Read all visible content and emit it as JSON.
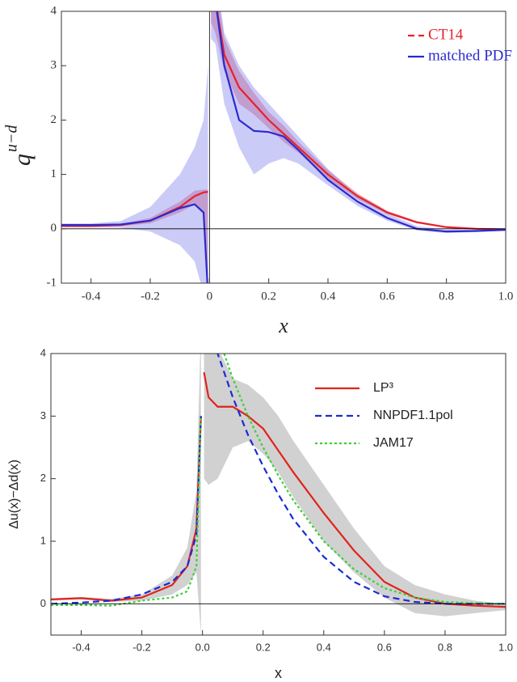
{
  "chart_data": [
    {
      "type": "line",
      "x_label": "x",
      "y_label": "q",
      "y_label_superscript": "u−d",
      "font": "serif",
      "xlim": [
        -0.5,
        1.0
      ],
      "ylim": [
        -1,
        4
      ],
      "xticks": [
        -0.4,
        -0.2,
        0,
        0.2,
        0.4,
        0.6,
        0.8,
        {
          "value": 1,
          "label": "1.0"
        }
      ],
      "yticks": [
        -1,
        0,
        1,
        2,
        3,
        4
      ],
      "zero_line": true,
      "x_zero_line": true,
      "legend": "top-right",
      "x": [
        -0.5,
        -0.4,
        -0.3,
        -0.2,
        -0.1,
        -0.05,
        -0.02,
        -0.005,
        0,
        0.005,
        0.02,
        0.05,
        0.1,
        0.15,
        0.2,
        0.25,
        0.3,
        0.4,
        0.5,
        0.6,
        0.7,
        0.8,
        0.9,
        1.0
      ],
      "series": [
        {
          "name": "CT14",
          "color": "#e8202a",
          "style": "solid",
          "legend_style": "dashed",
          "band_color": "#d9475a",
          "values": [
            0.05,
            0.05,
            0.07,
            0.15,
            0.4,
            0.6,
            0.67,
            0.68,
            null,
            4.5,
            4.2,
            3.2,
            2.6,
            2.3,
            2.0,
            1.75,
            1.5,
            1.0,
            0.6,
            0.3,
            0.12,
            0.03,
            0,
            -0.01
          ],
          "lower": [
            0.04,
            0.04,
            0.05,
            0.1,
            0.3,
            0.45,
            0.3,
            -1.2,
            null,
            3.8,
            3.6,
            2.9,
            2.3,
            2.1,
            1.85,
            1.6,
            1.4,
            0.92,
            0.55,
            0.27,
            0.1,
            0.02,
            -0.01,
            -0.02
          ],
          "upper": [
            0.06,
            0.06,
            0.09,
            0.2,
            0.5,
            0.7,
            0.72,
            0.72,
            null,
            5,
            4.6,
            3.5,
            2.9,
            2.5,
            2.15,
            1.9,
            1.6,
            1.08,
            0.65,
            0.33,
            0.14,
            0.04,
            0.01,
            0
          ]
        },
        {
          "name": "matched PDF",
          "color": "#2a2ad0",
          "style": "solid",
          "legend_style": "solid",
          "band_color": "#8c8cf0",
          "values": [
            0.07,
            0.07,
            0.08,
            0.15,
            0.38,
            0.45,
            0.3,
            -1.2,
            null,
            4.5,
            4.2,
            3.0,
            2.0,
            1.8,
            1.78,
            1.7,
            1.45,
            0.9,
            0.5,
            0.2,
            0,
            -0.05,
            -0.04,
            -0.02
          ],
          "lower": [
            0.03,
            0.03,
            0.02,
            -0.05,
            -0.3,
            -0.6,
            -1.2,
            -1.5,
            null,
            3.5,
            3.4,
            2.3,
            1.5,
            1.0,
            1.2,
            1.3,
            1.2,
            0.8,
            0.42,
            0.15,
            -0.03,
            -0.08,
            -0.06,
            -0.03
          ],
          "upper": [
            0.1,
            0.1,
            0.14,
            0.4,
            1.0,
            1.5,
            2.0,
            3.0,
            null,
            5,
            4.8,
            3.6,
            3.0,
            2.6,
            2.3,
            2.0,
            1.7,
            1.1,
            0.6,
            0.28,
            0.05,
            -0.02,
            -0.02,
            -0.01
          ]
        }
      ]
    },
    {
      "type": "line",
      "x_label": "x",
      "y_label": "Δu(x)−Δd(x)",
      "font": "sans-serif",
      "xlim": [
        -0.5,
        1.0
      ],
      "ylim": [
        -0.5,
        4
      ],
      "xticks": [
        -0.4,
        -0.2,
        {
          "value": 0,
          "label": "0.0"
        },
        0.2,
        0.4,
        0.6,
        0.8,
        {
          "value": 1,
          "label": "1.0"
        }
      ],
      "yticks": [
        0,
        1,
        2,
        3,
        4
      ],
      "zero_line": true,
      "x_zero_line": false,
      "legend": "top-right",
      "x": [
        -0.5,
        -0.4,
        -0.3,
        -0.2,
        -0.1,
        -0.05,
        -0.02,
        -0.005,
        0,
        0.005,
        0.02,
        0.05,
        0.1,
        0.15,
        0.2,
        0.25,
        0.3,
        0.4,
        0.5,
        0.6,
        0.7,
        0.8,
        0.9,
        1.0
      ],
      "series": [
        {
          "name": "LP³",
          "color": "#e0241c",
          "style": "solid",
          "legend_style": "solid",
          "band_color": "#999999",
          "values": [
            0.07,
            0.09,
            0.05,
            0.1,
            0.3,
            0.6,
            1.2,
            3,
            null,
            3.7,
            3.3,
            3.15,
            3.15,
            3.0,
            2.8,
            2.45,
            2.1,
            1.45,
            0.85,
            0.35,
            0.1,
            0,
            -0.03,
            -0.05
          ],
          "lower": [
            0.05,
            0.07,
            0.03,
            0.05,
            0.15,
            0.3,
            0.5,
            -0.5,
            null,
            2,
            1.9,
            2.0,
            2.5,
            2.6,
            2.4,
            2.1,
            1.7,
            1.0,
            0.5,
            0.1,
            -0.15,
            -0.2,
            -0.15,
            -0.1
          ],
          "upper": [
            0.09,
            0.11,
            0.08,
            0.15,
            0.45,
            0.9,
            1.8,
            4.5,
            null,
            4.5,
            4.4,
            4.1,
            3.6,
            3.5,
            3.3,
            3.0,
            2.6,
            1.9,
            1.2,
            0.6,
            0.3,
            0.15,
            0.05,
            0
          ]
        },
        {
          "name": "NNPDF1.1pol",
          "color": "#1a2bd6",
          "style": "dashed",
          "legend_style": "dashed",
          "values": [
            0,
            0.02,
            0.05,
            0.15,
            0.35,
            0.6,
            1.1,
            3,
            null,
            4.5,
            4.3,
            4.0,
            3.3,
            2.7,
            2.2,
            1.75,
            1.35,
            0.75,
            0.35,
            0.12,
            0.03,
            0,
            0,
            0
          ]
        },
        {
          "name": "JAM17",
          "color": "#3ad13a",
          "style": "dotted",
          "legend_style": "dotted",
          "values": [
            -0.02,
            -0.02,
            -0.03,
            0.05,
            0.1,
            0.2,
            0.6,
            3,
            null,
            4.5,
            4.4,
            4.3,
            3.6,
            3.0,
            2.5,
            2.05,
            1.65,
            1.0,
            0.55,
            0.25,
            0.1,
            0.03,
            0.01,
            0
          ]
        }
      ]
    }
  ]
}
